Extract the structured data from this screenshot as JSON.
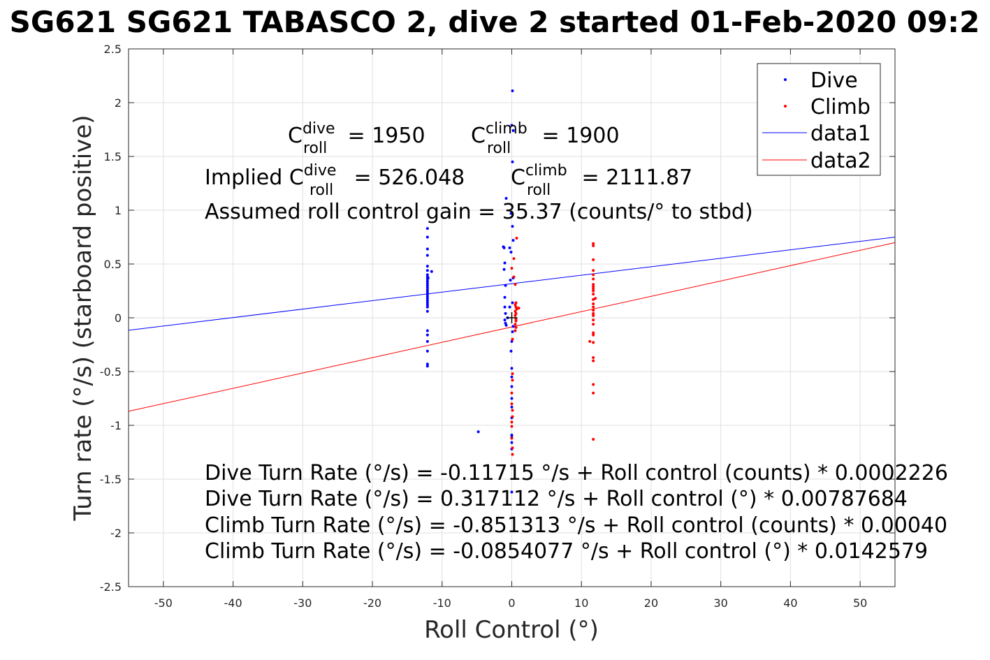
{
  "chart_data": {
    "type": "scatter",
    "title": "SG621 SG621 TABASCO 2, dive 2 started 01-Feb-2020 09:2",
    "xlabel": "Roll Control (°)",
    "ylabel": "Turn rate (°/s) (starboard positive)",
    "xlim": [
      -55,
      55
    ],
    "ylim": [
      -2.5,
      2.5
    ],
    "x_ticks": [
      -50,
      -40,
      -30,
      -20,
      -10,
      0,
      10,
      20,
      30,
      40,
      50
    ],
    "x_tick_labels": [
      "-50",
      "-40",
      "-30",
      "-20",
      "-10",
      "0",
      "10",
      "20",
      "30",
      "40",
      "50"
    ],
    "y_ticks": [
      -2.5,
      -2,
      -1.5,
      -1,
      -0.5,
      0,
      0.5,
      1,
      1.5,
      2,
      2.5
    ],
    "y_tick_labels": [
      "-2.5",
      "-2",
      "-1.5",
      "-1",
      "-0.5",
      "0",
      "0.5",
      "1",
      "1.5",
      "2",
      "2.5"
    ],
    "grid": true,
    "legend_position": "top-right",
    "legend": [
      {
        "label": "Dive",
        "kind": "marker",
        "color": "#0000ff"
      },
      {
        "label": "Climb",
        "kind": "marker",
        "color": "#ff0000"
      },
      {
        "label": "data1",
        "kind": "line",
        "color": "#0000ff"
      },
      {
        "label": "data2",
        "kind": "line",
        "color": "#ff0000"
      }
    ],
    "series": [
      {
        "name": "Dive",
        "kind": "scatter",
        "color": "#0000ff",
        "points": [
          [
            -12.1,
            0.83
          ],
          [
            -12.1,
            0.75
          ],
          [
            -12.1,
            0.64
          ],
          [
            -12.1,
            0.58
          ],
          [
            -12.1,
            0.48
          ],
          [
            -12.1,
            0.44
          ],
          [
            -12.1,
            0.4
          ],
          [
            -12.1,
            0.38
          ],
          [
            -12.1,
            0.36
          ],
          [
            -12.1,
            0.34
          ],
          [
            -12.1,
            0.32
          ],
          [
            -12.1,
            0.3
          ],
          [
            -12.1,
            0.28
          ],
          [
            -12.1,
            0.26
          ],
          [
            -12.1,
            0.24
          ],
          [
            -12.1,
            0.22
          ],
          [
            -12.1,
            0.2
          ],
          [
            -12.1,
            0.18
          ],
          [
            -12.1,
            0.16
          ],
          [
            -12.1,
            0.14
          ],
          [
            -12.1,
            0.12
          ],
          [
            -12.1,
            0.1
          ],
          [
            -12.1,
            0.06
          ],
          [
            -12.1,
            -0.12
          ],
          [
            -12.1,
            -0.16
          ],
          [
            -12.1,
            -0.22
          ],
          [
            -12.1,
            -0.31
          ],
          [
            -12.1,
            -0.43
          ],
          [
            -12.1,
            -0.45
          ],
          [
            -11.5,
            0.43
          ],
          [
            -12.0,
            0.37
          ],
          [
            -4.8,
            -1.06
          ],
          [
            -0.8,
            1.11
          ],
          [
            -1.2,
            0.66
          ],
          [
            -1.1,
            0.65
          ],
          [
            -1.0,
            0.51
          ],
          [
            -1.1,
            0.45
          ],
          [
            -0.9,
            0.3
          ],
          [
            -1.0,
            0.19
          ],
          [
            -1.0,
            0.1
          ],
          [
            -0.9,
            0.04
          ],
          [
            -1.0,
            -0.02
          ],
          [
            -0.9,
            -0.05
          ],
          [
            -0.8,
            -0.07
          ],
          [
            -0.6,
            0.0
          ],
          [
            -0.3,
            0.65
          ],
          [
            -0.2,
            0.35
          ],
          [
            -0.3,
            0.1
          ],
          [
            0.1,
            2.11
          ],
          [
            0.0,
            1.79
          ],
          [
            0.2,
            1.74
          ],
          [
            0.1,
            1.45
          ],
          [
            -0.1,
            0.97
          ],
          [
            0.1,
            0.85
          ],
          [
            0.2,
            0.72
          ],
          [
            -0.1,
            0.61
          ],
          [
            0.2,
            0.37
          ],
          [
            0.1,
            0.14
          ],
          [
            0.2,
            -0.08
          ],
          [
            0.1,
            -0.13
          ],
          [
            0.0,
            -0.22
          ],
          [
            -0.1,
            -0.31
          ],
          [
            0.0,
            -0.47
          ],
          [
            0.0,
            -0.55
          ],
          [
            0.0,
            -0.64
          ],
          [
            0.0,
            -0.75
          ],
          [
            0.0,
            -0.83
          ],
          [
            0.0,
            -0.93
          ],
          [
            0.0,
            -1.09
          ],
          [
            0.0,
            -1.11
          ],
          [
            0.0,
            -1.16
          ],
          [
            0.0,
            -1.22
          ],
          [
            0.0,
            -1.62
          ]
        ]
      },
      {
        "name": "Climb",
        "kind": "scatter",
        "color": "#ff0000",
        "points": [
          [
            11.7,
            0.69
          ],
          [
            11.7,
            0.67
          ],
          [
            11.7,
            0.54
          ],
          [
            11.7,
            0.44
          ],
          [
            11.7,
            0.4
          ],
          [
            11.7,
            0.36
          ],
          [
            11.7,
            0.31
          ],
          [
            11.7,
            0.29
          ],
          [
            11.7,
            0.27
          ],
          [
            11.7,
            0.25
          ],
          [
            11.7,
            0.22
          ],
          [
            11.7,
            0.17
          ],
          [
            11.7,
            0.13
          ],
          [
            11.7,
            0.1
          ],
          [
            11.7,
            0.07
          ],
          [
            11.7,
            0.04
          ],
          [
            11.7,
            0.02
          ],
          [
            11.7,
            -0.02
          ],
          [
            11.7,
            -0.06
          ],
          [
            11.7,
            -0.14
          ],
          [
            11.7,
            -0.16
          ],
          [
            11.7,
            -0.23
          ],
          [
            11.7,
            -0.37
          ],
          [
            11.7,
            -0.4
          ],
          [
            11.7,
            -0.62
          ],
          [
            11.7,
            -0.7
          ],
          [
            11.7,
            -1.13
          ],
          [
            11.2,
            -0.22
          ],
          [
            12.0,
            0.18
          ],
          [
            0.7,
            0.74
          ],
          [
            0.3,
            0.55
          ],
          [
            0.0,
            0.46
          ],
          [
            0.3,
            0.38
          ],
          [
            0.5,
            0.31
          ],
          [
            0.6,
            0.14
          ],
          [
            0.5,
            0.12
          ],
          [
            0.6,
            0.1
          ],
          [
            0.7,
            0.08
          ],
          [
            0.5,
            0.06
          ],
          [
            0.6,
            0.04
          ],
          [
            0.5,
            0.02
          ],
          [
            0.6,
            -0.01
          ],
          [
            0.6,
            -0.03
          ],
          [
            0.5,
            -0.06
          ],
          [
            0.6,
            -0.09
          ],
          [
            0.5,
            -0.12
          ],
          [
            0.1,
            -0.2
          ],
          [
            1.0,
            0.09
          ],
          [
            0.1,
            -0.52
          ],
          [
            0.1,
            -0.58
          ],
          [
            0.0,
            -0.7
          ],
          [
            0.0,
            -0.8
          ],
          [
            0.1,
            -0.86
          ],
          [
            0.1,
            -0.92
          ],
          [
            0.0,
            -0.97
          ],
          [
            0.0,
            -1.01
          ],
          [
            0.0,
            -1.12
          ],
          [
            0.1,
            -1.21
          ],
          [
            0.1,
            -1.27
          ]
        ]
      },
      {
        "name": "data1",
        "kind": "line",
        "color": "#0000ff",
        "x": [
          -55,
          55
        ],
        "y": [
          -0.1162,
          0.7501
        ]
      },
      {
        "name": "data2",
        "kind": "line",
        "color": "#ff0000",
        "x": [
          -55,
          55
        ],
        "y": [
          -0.8696,
          0.6987
        ]
      }
    ],
    "origin_marker": {
      "x": 0,
      "y": 0,
      "symbol": "+"
    },
    "annotations": {
      "c_dive": {
        "base": "C",
        "sup": "dive",
        "sub": "roll",
        "rest": " = 1950"
      },
      "c_climb": {
        "base": "C",
        "sup": "climb",
        "sub": "roll",
        "rest": " = 1900"
      },
      "implied_prefix": "Implied C",
      "implied_dive": {
        "sup": "dive",
        "sub": "roll",
        "rest": " = 526.048"
      },
      "implied_climb": {
        "base": "C",
        "sup": "climb",
        "sub": "roll",
        "rest": " = 2111.87"
      },
      "gain": "Assumed roll control gain = 35.37 (counts/° to stbd)",
      "eq1": "Dive Turn Rate (°/s) = -0.11715 °/s + Roll control (counts) * 0.0002226",
      "eq2": "Dive Turn Rate (°/s) = 0.317112 °/s + Roll control (°) * 0.00787684",
      "eq3": "Climb Turn Rate (°/s) = -0.851313 °/s + Roll control (counts) * 0.00040",
      "eq4": "Climb Turn Rate (°/s) = -0.0854077 °/s + Roll control (°) * 0.0142579"
    }
  }
}
